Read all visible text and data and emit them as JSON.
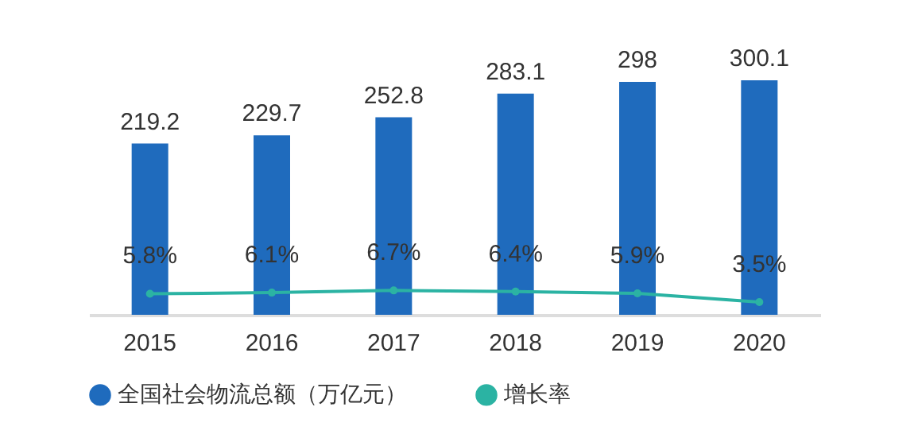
{
  "chart_data": {
    "type": "bar",
    "categories": [
      "2015",
      "2016",
      "2017",
      "2018",
      "2019",
      "2020"
    ],
    "series": [
      {
        "name": "全国社会物流总额（万亿元）",
        "color": "#1f6bbd",
        "values": [
          219.2,
          229.7,
          252.8,
          283.1,
          298,
          300.1
        ]
      },
      {
        "name": "增长率",
        "type": "line",
        "axis": "y2",
        "color": "#2bb3a3",
        "values": [
          5.8,
          6.1,
          6.7,
          6.4,
          5.9,
          3.5
        ],
        "value_labels": [
          "5.8%",
          "6.1%",
          "6.7%",
          "6.4%",
          "5.9%",
          "3.5%"
        ]
      }
    ],
    "data_labels": true,
    "tick_labels": "x",
    "legend": "bottom",
    "marker": "circle",
    "line_style": "solid",
    "grid": false
  }
}
